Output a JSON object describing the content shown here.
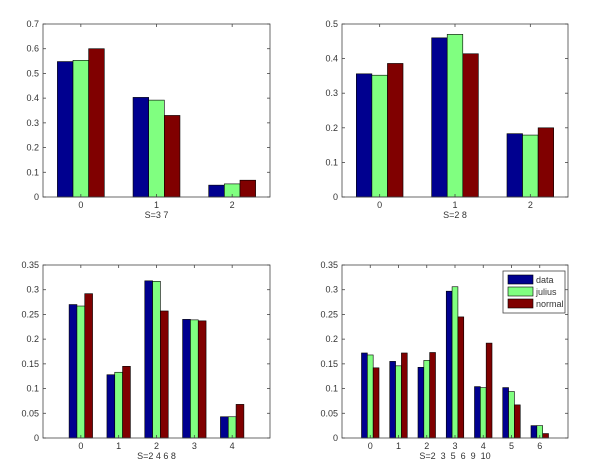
{
  "chart_data": [
    {
      "type": "bar",
      "xlabel": "S=3 7",
      "categories": [
        "0",
        "1",
        "2"
      ],
      "ylim": [
        0,
        0.7
      ],
      "yticks": [
        "0",
        "0.1",
        "0.2",
        "0.3",
        "0.4",
        "0.5",
        "0.6",
        "0.7"
      ],
      "series": [
        {
          "name": "data",
          "values": [
            0.548,
            0.403,
            0.048
          ]
        },
        {
          "name": "julius",
          "values": [
            0.553,
            0.392,
            0.053
          ]
        },
        {
          "name": "normal",
          "values": [
            0.6,
            0.33,
            0.068
          ]
        }
      ]
    },
    {
      "type": "bar",
      "xlabel": "S=2 8",
      "categories": [
        "0",
        "1",
        "2"
      ],
      "ylim": [
        0,
        0.5
      ],
      "yticks": [
        "0",
        "0.1",
        "0.2",
        "0.3",
        "0.4",
        "0.5"
      ],
      "series": [
        {
          "name": "data",
          "values": [
            0.356,
            0.46,
            0.183
          ]
        },
        {
          "name": "julius",
          "values": [
            0.352,
            0.47,
            0.179
          ]
        },
        {
          "name": "normal",
          "values": [
            0.386,
            0.414,
            0.2
          ]
        }
      ]
    },
    {
      "type": "bar",
      "xlabel": "S=2 4 6 8",
      "categories": [
        "0",
        "1",
        "2",
        "3",
        "4"
      ],
      "ylim": [
        0,
        0.35
      ],
      "yticks": [
        "0",
        "0.05",
        "0.1",
        "0.15",
        "0.2",
        "0.25",
        "0.3",
        "0.35"
      ],
      "series": [
        {
          "name": "data",
          "values": [
            0.27,
            0.128,
            0.318,
            0.24,
            0.043
          ]
        },
        {
          "name": "julius",
          "values": [
            0.267,
            0.133,
            0.317,
            0.239,
            0.043
          ]
        },
        {
          "name": "normal",
          "values": [
            0.292,
            0.145,
            0.257,
            0.237,
            0.068
          ]
        }
      ]
    },
    {
      "type": "bar",
      "xlabel": "S=2  3  5  6  9  10",
      "categories": [
        "0",
        "1",
        "2",
        "3",
        "4",
        "5",
        "6"
      ],
      "ylim": [
        0,
        0.35
      ],
      "yticks": [
        "0",
        "0.05",
        "0.1",
        "0.15",
        "0.2",
        "0.25",
        "0.3",
        "0.35"
      ],
      "legend": {
        "position": "top-right",
        "entries": [
          "data",
          "julius",
          "normal"
        ]
      },
      "series": [
        {
          "name": "data",
          "values": [
            0.172,
            0.155,
            0.143,
            0.297,
            0.104,
            0.102,
            0.025
          ]
        },
        {
          "name": "julius",
          "values": [
            0.168,
            0.146,
            0.157,
            0.306,
            0.102,
            0.094,
            0.025
          ]
        },
        {
          "name": "normal",
          "values": [
            0.142,
            0.172,
            0.173,
            0.245,
            0.192,
            0.067,
            0.009
          ]
        }
      ]
    }
  ],
  "colors": {
    "data": "#00008f",
    "julius": "#80ff80",
    "normal": "#800000"
  }
}
